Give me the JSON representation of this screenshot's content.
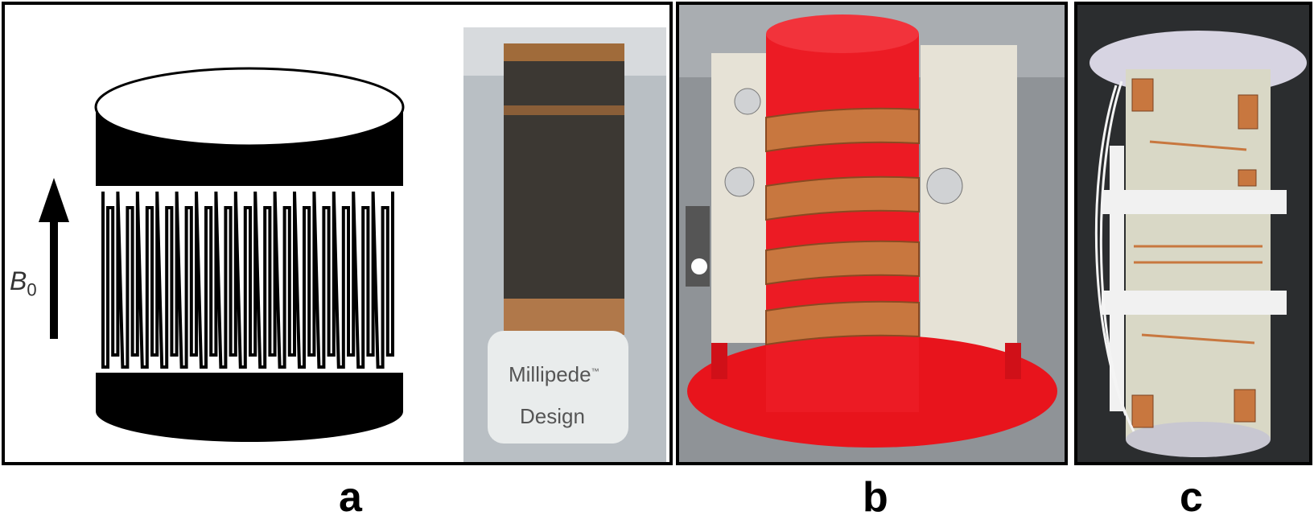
{
  "panels": {
    "a": {
      "caption": "a",
      "field_label": "B",
      "field_subscript": "0",
      "photo_label_line1": "Millipede",
      "photo_label_tm": "™",
      "photo_label_line2": "Design"
    },
    "b": {
      "caption": "b"
    },
    "c": {
      "caption": "c"
    }
  },
  "colors": {
    "panel_border": "#000000",
    "coil_black": "#000000",
    "copper": "#c8773f",
    "former_red": "#e8141c",
    "board_beige": "#e6e2d6",
    "dark_background": "#2b2d2f"
  },
  "icons": [
    "field-arrow-icon"
  ]
}
